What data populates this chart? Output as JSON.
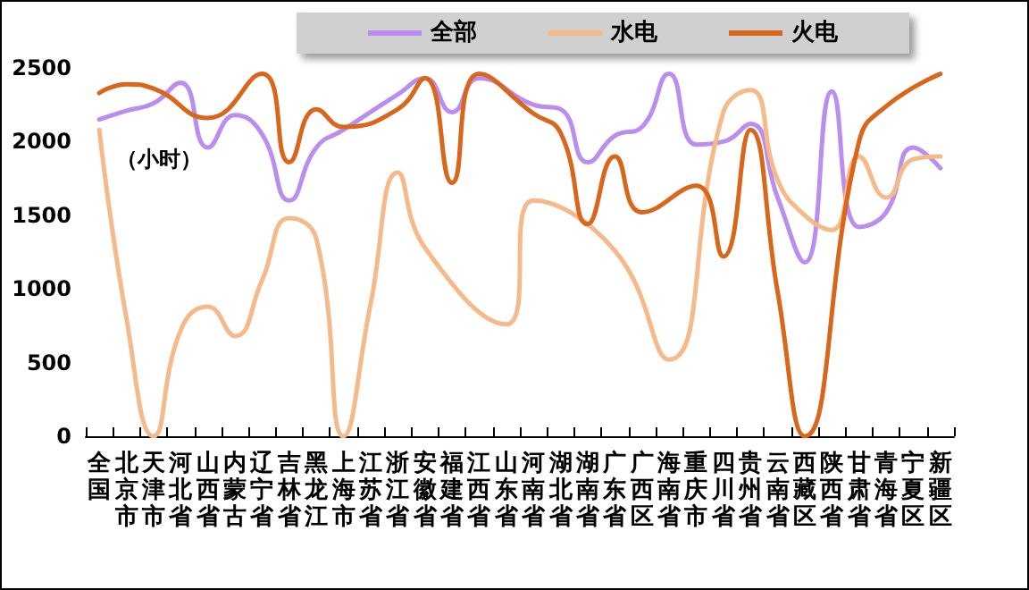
{
  "chart_data": {
    "type": "line",
    "ylabel": "（小时）",
    "categories": [
      "全国",
      "北京市",
      "天津市",
      "河北省",
      "山西省",
      "内蒙古",
      "辽宁省",
      "吉林省",
      "黑龙江",
      "上海市",
      "江苏省",
      "浙江省",
      "安徽省",
      "福建省",
      "江西省",
      "山东省",
      "河南省",
      "湖北省",
      "湖南省",
      "广东省",
      "广西区",
      "海南省",
      "重庆市",
      "四川省",
      "贵州省",
      "云南省",
      "西藏区",
      "陕西省",
      "甘肃省",
      "青海省",
      "宁夏区",
      "新疆区"
    ],
    "series": [
      {
        "name": "全部",
        "color": "#b98ef0",
        "values": [
          2150,
          2210,
          2260,
          2400,
          1960,
          2180,
          2050,
          1600,
          1960,
          2080,
          null,
          2320,
          2430,
          2200,
          2430,
          null,
          2250,
          2220,
          1860,
          2040,
          2100,
          2460,
          1980,
          2000,
          2120,
          1620,
          1180,
          2340,
          1420,
          1520,
          1960,
          1820
        ]
      },
      {
        "name": "水电",
        "color": "#f5b98a",
        "values": [
          2080,
          800,
          0,
          720,
          880,
          680,
          1060,
          1480,
          1340,
          0,
          900,
          1790,
          1280,
          null,
          null,
          760,
          1600,
          null,
          null,
          1260,
          null,
          520,
          null,
          2200,
          2350,
          1740,
          1500,
          1400,
          1900,
          1620,
          1880,
          1900
        ]
      },
      {
        "name": "火电",
        "color": "#d9661a",
        "values": [
          2330,
          2390,
          2360,
          null,
          2160,
          null,
          2460,
          1860,
          2220,
          2100,
          null,
          2220,
          2430,
          1720,
          2460,
          null,
          2190,
          2060,
          1440,
          1900,
          1520,
          null,
          1700,
          1220,
          2080,
          980,
          0,
          null,
          2000,
          2240,
          null,
          2460
        ]
      }
    ],
    "ylim": [
      0,
      2500
    ],
    "yticks": [
      0,
      500,
      1000,
      1500,
      2000,
      2500
    ],
    "grid": false,
    "legend": "top",
    "marker": "none",
    "line_style": "solid"
  }
}
